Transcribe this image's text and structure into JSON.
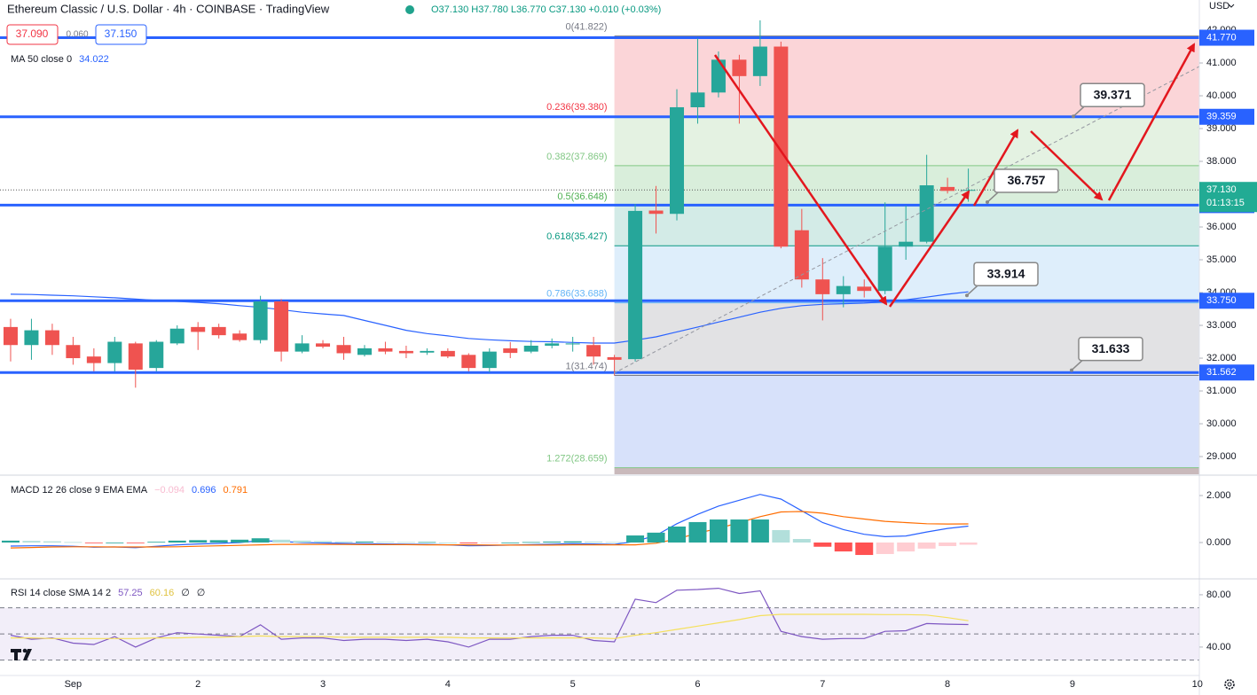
{
  "header": {
    "title": "Ethereum Classic / U.S. Dollar · 4h · COINBASE · TradingView",
    "ohlc": "O37.130 H37.780 L36.770 C37.130 +0.010 (+0.03%)",
    "bid": "37.090",
    "spread": "0.060",
    "ask": "37.150",
    "currency": "USD"
  },
  "chart_data": [
    {
      "type": "candlestick",
      "categories": [
        null,
        null,
        null,
        "Sep",
        null,
        null,
        null,
        null,
        null,
        "2",
        null,
        null,
        null,
        null,
        null,
        "3",
        null,
        null,
        null,
        null,
        null,
        "4",
        null,
        null,
        null,
        null,
        null,
        "5",
        null,
        null,
        null,
        null,
        null,
        "6",
        null,
        null,
        null,
        null,
        null,
        "7",
        null,
        null,
        null,
        null,
        null,
        "8",
        null,
        null,
        null,
        null,
        null,
        "9",
        null,
        null,
        null,
        null,
        null,
        "10"
      ],
      "open": [
        32.95,
        32.4,
        32.85,
        32.4,
        32.05,
        31.85,
        32.45,
        31.7,
        32.45,
        32.95,
        32.95,
        32.75,
        32.55,
        33.73,
        32.2,
        32.45,
        32.4,
        32.1,
        32.3,
        32.22,
        32.17,
        32.22,
        32.1,
        31.7,
        32.3,
        32.2,
        32.38,
        32.42,
        32.4,
        32.03,
        31.97,
        36.5,
        36.4,
        39.65,
        40.1,
        41.1,
        40.6,
        41.5,
        35.9,
        34.4,
        33.95,
        34.18,
        34.05,
        35.4,
        35.55,
        37.22,
        37.13,
        null,
        null,
        null,
        null,
        null,
        null,
        null,
        null,
        null,
        null,
        null
      ],
      "high": [
        33.2,
        33.2,
        33.05,
        32.65,
        32.3,
        32.65,
        32.5,
        32.55,
        33.0,
        33.1,
        33.05,
        32.85,
        33.9,
        33.8,
        32.7,
        32.55,
        32.65,
        32.4,
        32.5,
        32.38,
        32.3,
        32.3,
        32.15,
        32.3,
        32.49,
        32.55,
        32.6,
        32.65,
        32.65,
        32.1,
        36.7,
        37.25,
        40.2,
        41.75,
        41.35,
        41.25,
        42.3,
        41.65,
        36.55,
        35.05,
        34.5,
        34.4,
        36.75,
        36.65,
        38.2,
        37.5,
        37.78,
        null,
        null,
        null,
        null,
        null,
        null,
        null,
        null,
        null,
        null,
        null
      ],
      "low": [
        31.9,
        31.95,
        32.1,
        31.8,
        31.6,
        31.6,
        31.1,
        31.6,
        32.4,
        32.25,
        32.6,
        32.5,
        32.45,
        31.9,
        32.15,
        32.3,
        31.95,
        32.05,
        32.12,
        32.0,
        32.1,
        32.0,
        31.6,
        31.57,
        32.0,
        32.15,
        32.3,
        32.2,
        31.8,
        31.47,
        31.9,
        35.8,
        36.2,
        39.15,
        39.95,
        39.15,
        40.3,
        35.35,
        34.15,
        33.15,
        33.55,
        33.85,
        33.95,
        35.0,
        35.5,
        37.02,
        36.77,
        null,
        null,
        null,
        null,
        null,
        null,
        null,
        null,
        null,
        null,
        null
      ],
      "close": [
        32.4,
        32.85,
        32.4,
        32.0,
        31.85,
        32.5,
        31.65,
        32.5,
        32.9,
        32.8,
        32.7,
        32.55,
        33.73,
        32.2,
        32.45,
        32.35,
        32.15,
        32.3,
        32.2,
        32.15,
        32.22,
        32.05,
        31.7,
        32.2,
        32.16,
        32.38,
        32.45,
        32.45,
        32.05,
        31.95,
        36.49,
        36.4,
        39.65,
        40.1,
        41.1,
        40.6,
        41.5,
        35.4,
        34.4,
        33.95,
        34.2,
        34.05,
        35.4,
        35.55,
        37.27,
        37.1,
        37.13,
        null,
        null,
        null,
        null,
        null,
        null,
        null,
        null,
        null,
        null,
        null
      ],
      "up_color": "#26a69a",
      "down_color": "#ef5350",
      "series": [
        {
          "name": "MA 50 close 0",
          "color": "#2962ff",
          "values": [
            33.95,
            33.94,
            33.92,
            33.9,
            33.87,
            33.84,
            33.8,
            33.76,
            33.73,
            33.7,
            33.66,
            33.6,
            33.55,
            33.48,
            33.4,
            33.35,
            33.3,
            33.15,
            33.0,
            32.85,
            32.75,
            32.68,
            32.6,
            32.56,
            32.53,
            32.51,
            32.5,
            32.48,
            32.46,
            32.46,
            32.55,
            32.65,
            32.8,
            32.95,
            33.1,
            33.25,
            33.4,
            33.52,
            33.6,
            33.64,
            33.66,
            33.68,
            33.72,
            33.78,
            33.86,
            33.95,
            34.022,
            null,
            null,
            null,
            null,
            null,
            null,
            null,
            null,
            null,
            null,
            null
          ]
        }
      ],
      "ylim": [
        28.46,
        42.92
      ],
      "yticks": [
        {
          "value": 42,
          "label": "42.000"
        },
        {
          "value": 41,
          "label": "41.000"
        },
        {
          "value": 40,
          "label": "40.000"
        },
        {
          "value": 39,
          "label": "39.000"
        },
        {
          "value": 38,
          "label": "38.000"
        },
        {
          "value": 36,
          "label": "36.000"
        },
        {
          "value": 35,
          "label": "35.000"
        },
        {
          "value": 34,
          "label": "34.000"
        },
        {
          "value": 33,
          "label": "33.000"
        },
        {
          "value": 32,
          "label": "32.000"
        },
        {
          "value": 31,
          "label": "31.000"
        },
        {
          "value": 30,
          "label": "30.000"
        },
        {
          "value": 29,
          "label": "29.000"
        }
      ],
      "hlines": [
        {
          "value": 41.77,
          "label": "41.770"
        },
        39.359,
        36.666,
        {
          "value": 33.75,
          "label": "33.750"
        },
        31.562
      ],
      "hline_color": "#2962ff",
      "last_price": {
        "value": 37.13,
        "label": "37.130"
      },
      "countdown": "01:13:15",
      "last_color": "#22ab94",
      "fib_levels": [
        {
          "value": 41.822,
          "label": "0(41.822)",
          "color": "#787b86"
        },
        {
          "value": 39.38,
          "label": "0.236(39.380)",
          "color": "#f23645"
        },
        {
          "value": 37.869,
          "label": "0.382(37.869)",
          "color": "#81c784"
        },
        {
          "value": 36.648,
          "label": "0.5(36.648)",
          "color": "#4caf50"
        },
        {
          "value": 35.427,
          "label": "0.618(35.427)",
          "color": "#089981"
        },
        {
          "value": 33.688,
          "label": "0.786(33.688)",
          "color": "#64b5f6"
        },
        {
          "value": 31.474,
          "label": "1(31.474)",
          "color": "#787b86"
        },
        {
          "value": 28.659,
          "label": "1.272(28.659)",
          "color": "#81c784"
        }
      ],
      "fib_zone_colors": [
        "#fbd5d8",
        "#e4f2e2",
        "#d9eedb",
        "#d3ebe7",
        "#deeefb",
        "#e2e2e4",
        "#d7e1fa"
      ],
      "annotations": [
        39.371,
        36.757,
        33.914,
        31.633
      ]
    },
    {
      "type": "macd",
      "title": "MACD 12 26 close 9 EMA EMA",
      "legend_values": [
        "−0.094",
        "0.696",
        "0.791"
      ],
      "legend_colors": [
        "#f8bbd0",
        "#2962ff",
        "#ff6d00"
      ],
      "histogram": [
        0.08,
        0.07,
        0.05,
        0.02,
        -0.02,
        0.0,
        -0.03,
        0.03,
        0.08,
        0.1,
        0.1,
        0.12,
        0.18,
        0.12,
        0.08,
        0.06,
        0.04,
        0.04,
        0.03,
        0.02,
        0.02,
        0.0,
        -0.04,
        -0.02,
        0.0,
        0.02,
        0.04,
        0.05,
        0.04,
        0.02,
        0.3,
        0.42,
        0.68,
        0.87,
        0.98,
        0.98,
        0.98,
        0.53,
        0.15,
        -0.18,
        -0.38,
        -0.53,
        -0.49,
        -0.38,
        -0.26,
        -0.15,
        -0.094,
        null,
        null,
        null,
        null,
        null,
        null,
        null,
        null,
        null,
        null,
        null
      ],
      "hist_colors": [
        "#26a69a",
        "#b2dfdb",
        "#ff5252",
        "#ffcdd2"
      ],
      "series": [
        {
          "color": "#2962ff",
          "values": [
            -0.15,
            -0.14,
            -0.14,
            -0.16,
            -0.2,
            -0.19,
            -0.22,
            -0.16,
            -0.1,
            -0.06,
            -0.04,
            0.0,
            0.08,
            0.04,
            0.0,
            -0.02,
            -0.04,
            -0.05,
            -0.06,
            -0.07,
            -0.08,
            -0.1,
            -0.14,
            -0.13,
            -0.11,
            -0.09,
            -0.07,
            -0.05,
            -0.06,
            -0.08,
            0.05,
            0.3,
            0.8,
            1.2,
            1.55,
            1.8,
            2.05,
            1.85,
            1.35,
            0.85,
            0.55,
            0.35,
            0.25,
            0.28,
            0.45,
            0.6,
            0.696,
            null,
            null,
            null,
            null,
            null,
            null,
            null,
            null,
            null,
            null,
            null
          ]
        },
        {
          "color": "#ff6d00",
          "values": [
            -0.23,
            -0.21,
            -0.19,
            -0.18,
            -0.18,
            -0.19,
            -0.19,
            -0.19,
            -0.18,
            -0.16,
            -0.14,
            -0.12,
            -0.1,
            -0.08,
            -0.08,
            -0.08,
            -0.08,
            -0.09,
            -0.09,
            -0.09,
            -0.1,
            -0.1,
            -0.1,
            -0.11,
            -0.11,
            -0.11,
            -0.11,
            -0.1,
            -0.1,
            -0.1,
            -0.1,
            -0.03,
            0.15,
            0.4,
            0.6,
            0.85,
            1.1,
            1.3,
            1.32,
            1.25,
            1.1,
            1.0,
            0.9,
            0.85,
            0.8,
            0.79,
            0.791,
            null,
            null,
            null,
            null,
            null,
            null,
            null,
            null,
            null,
            null,
            null
          ]
        }
      ],
      "ylim": [
        -1.51,
        2.83
      ],
      "yticks": [
        {
          "value": 2,
          "label": "2.000"
        },
        {
          "value": 0,
          "label": "0.000"
        }
      ]
    },
    {
      "type": "rsi",
      "title": "RSI 14 close SMA 14 2",
      "legend_values": [
        "57.25",
        "60.16",
        "∅",
        "∅"
      ],
      "legend_colors": [
        "#7e57c2",
        "#e0c341",
        "#131722",
        "#131722"
      ],
      "series": [
        {
          "color": "#7e57c2",
          "values": [
            49,
            46,
            47,
            43,
            42,
            48,
            40,
            47,
            51,
            50,
            49,
            48,
            57,
            46,
            47,
            47,
            45,
            46,
            46,
            45,
            46,
            44,
            40,
            46,
            46,
            48,
            49,
            49,
            45,
            44,
            76.6,
            74,
            83.5,
            84,
            85,
            81,
            83,
            52,
            48,
            46,
            46.5,
            46.5,
            52,
            52.5,
            58,
            57.5,
            57.25,
            null,
            null,
            null,
            null,
            null,
            null,
            null,
            null,
            null,
            null,
            null
          ]
        },
        {
          "color": "#f5e05c",
          "values": [
            47,
            47,
            46.5,
            46.5,
            46.5,
            46.5,
            46.5,
            47,
            47,
            47.5,
            47.5,
            48,
            48.5,
            48,
            48,
            48,
            47.5,
            47.5,
            47.5,
            47.5,
            47.5,
            47.5,
            47,
            47,
            47,
            47,
            47,
            47,
            47,
            46.5,
            49,
            51,
            53.5,
            56,
            58.5,
            61,
            64,
            65,
            65,
            65,
            65,
            65,
            64.8,
            64.8,
            64.5,
            62.5,
            60.16,
            null,
            null,
            null,
            null,
            null,
            null,
            null,
            null,
            null,
            null,
            null
          ]
        }
      ],
      "bands": [
        70,
        50,
        30
      ],
      "band_color": "#7e57c2",
      "ylim": [
        19.6,
        90.8
      ],
      "yticks": [
        {
          "value": 80,
          "label": "80.00"
        },
        {
          "value": 40,
          "label": "40.00"
        }
      ]
    }
  ]
}
